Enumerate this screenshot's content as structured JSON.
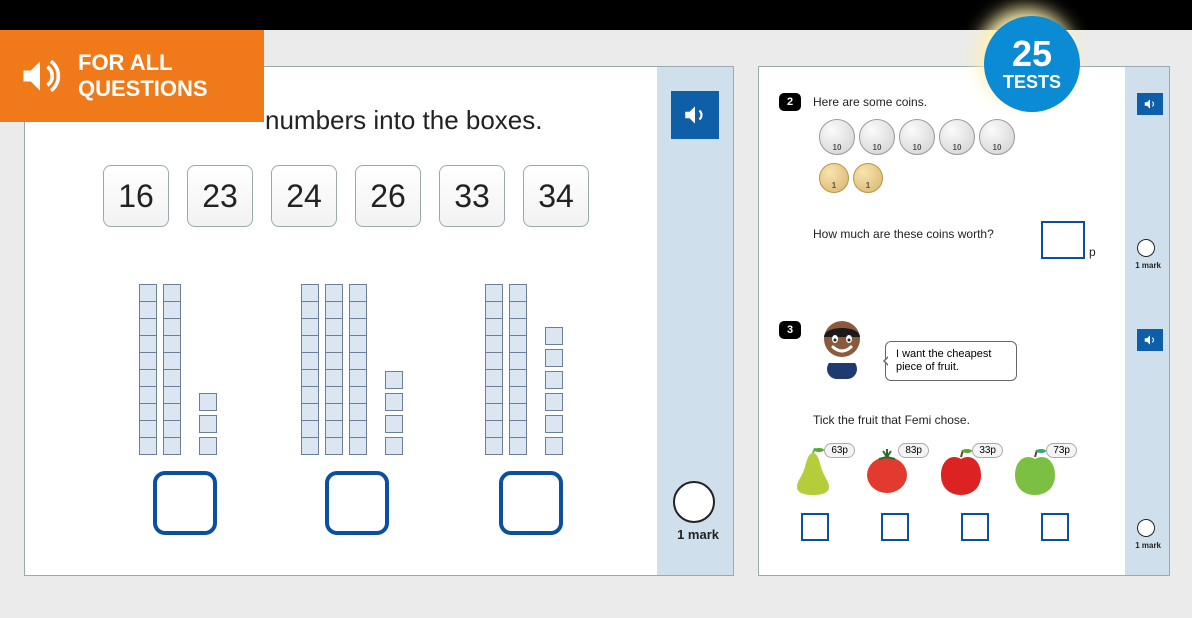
{
  "banner": {
    "line1": "FOR ALL",
    "line2": "QUESTIONS"
  },
  "badge": {
    "number": "25",
    "label": "TESTS"
  },
  "left_panel": {
    "question_text": "numbers into the boxes.",
    "numbers": [
      "16",
      "23",
      "24",
      "26",
      "33",
      "34"
    ],
    "groups": [
      {
        "tens": 2,
        "ones": 3
      },
      {
        "tens": 3,
        "ones": 4
      },
      {
        "tens": 2,
        "ones": 6
      }
    ],
    "mark_label": "1 mark",
    "colors": {
      "accent": "#0a4fa0",
      "block_fill": "#dbe6f2",
      "block_border": "#6b7f97",
      "audio": "#0f5fa8"
    }
  },
  "right_panel": {
    "q2": {
      "num": "2",
      "intro": "Here are some coins.",
      "coins_row1": [
        10,
        10,
        10,
        10,
        10
      ],
      "coins_row2": [
        1,
        1
      ],
      "prompt": "How much are these coins worth?",
      "unit": "p",
      "mark": "1 mark"
    },
    "q3": {
      "num": "3",
      "speech": "I want the cheapest piece of fruit.",
      "prompt": "Tick the fruit that Femi chose.",
      "fruits": [
        {
          "name": "pear",
          "price": "63p",
          "color": "#b5cc3b"
        },
        {
          "name": "tomato",
          "price": "83p",
          "color": "#e23a2e"
        },
        {
          "name": "apple-red",
          "price": "33p",
          "color": "#d22"
        },
        {
          "name": "apple-green",
          "price": "73p",
          "color": "#7bc043"
        }
      ],
      "mark": "1 mark"
    }
  }
}
